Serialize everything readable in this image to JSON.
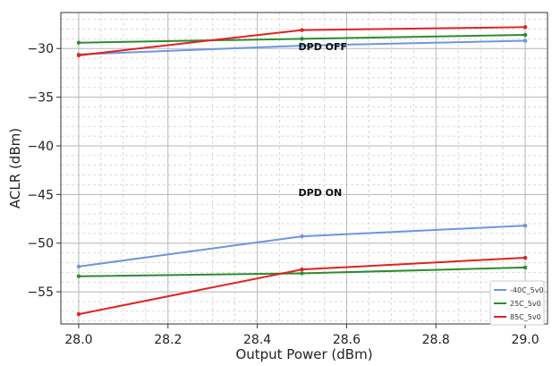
{
  "chart_data": {
    "type": "line",
    "title": "",
    "xlabel": "Output Power (dBm)",
    "ylabel": "ACLR (dBm)",
    "xlim": [
      27.96,
      29.05
    ],
    "ylim": [
      -58.3,
      -26.3
    ],
    "xticks": [
      28.0,
      28.2,
      28.4,
      28.6,
      28.8,
      29.0
    ],
    "xtick_labels": [
      "28.0",
      "28.2",
      "28.4",
      "28.6",
      "28.8",
      "29.0"
    ],
    "yticks": [
      -55,
      -50,
      -45,
      -40,
      -35,
      -30
    ],
    "ytick_labels": [
      "−55",
      "−50",
      "−45",
      "−40",
      "−35",
      "−30"
    ],
    "grid": true,
    "legend_position": "bottom-right",
    "x": [
      28.0,
      28.5,
      29.0
    ],
    "series": [
      {
        "name": "-40C_5v0",
        "color": "#6f95e0",
        "values": [
          -30.6,
          -29.7,
          -29.2
        ]
      },
      {
        "name": "25C_5v0",
        "color": "#2e8b2e",
        "values": [
          -29.4,
          -29.0,
          -28.6
        ]
      },
      {
        "name": "85C_5v0",
        "color": "#e0221f",
        "values": [
          -30.7,
          -28.1,
          -27.8
        ]
      },
      {
        "name": "-40C_5v0",
        "color": "#6f95e0",
        "values": [
          -52.4,
          -49.3,
          -48.2
        ],
        "legend": false
      },
      {
        "name": "25C_5v0",
        "color": "#2e8b2e",
        "values": [
          -53.4,
          -53.1,
          -52.5
        ],
        "legend": false
      },
      {
        "name": "85C_5v0",
        "color": "#e0221f",
        "values": [
          -57.3,
          -52.7,
          -51.5
        ],
        "legend": false
      }
    ],
    "annotations": [
      {
        "text": "DPD OFF",
        "x": 28.5,
        "y": -29.8
      },
      {
        "text": "DPD ON",
        "x": 28.5,
        "y": -44.8
      }
    ]
  }
}
